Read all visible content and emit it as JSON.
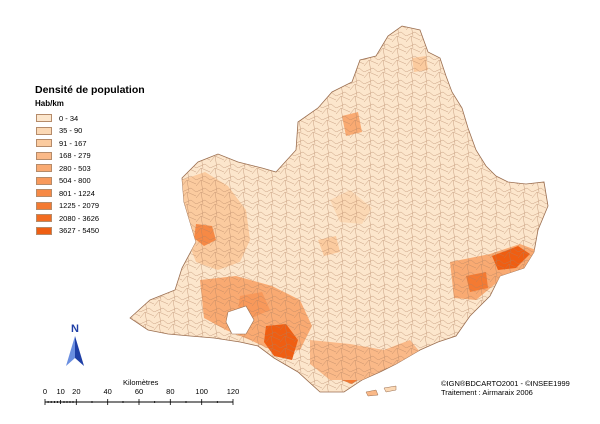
{
  "legend": {
    "title": "Densité de population",
    "unit": "Hab/km",
    "classes": [
      {
        "label": "0 - 34",
        "color": "#fce6cc"
      },
      {
        "label": "35 - 90",
        "color": "#fbd8b4"
      },
      {
        "label": "91 - 167",
        "color": "#fbcb9f"
      },
      {
        "label": "168 - 279",
        "color": "#fab988"
      },
      {
        "label": "280 - 503",
        "color": "#f9aa72"
      },
      {
        "label": "504 - 800",
        "color": "#f8995b"
      },
      {
        "label": "801 - 1224",
        "color": "#f68945"
      },
      {
        "label": "1225 - 2079",
        "color": "#f47a32"
      },
      {
        "label": "2080 - 3626",
        "color": "#f26c21"
      },
      {
        "label": "3627 - 5450",
        "color": "#ef5e12"
      }
    ]
  },
  "scale": {
    "title": "Kilomètres",
    "ticks": [
      "0",
      "10",
      "20",
      "40",
      "60",
      "80",
      "100",
      "120"
    ]
  },
  "north_label": "N",
  "credits": {
    "line1": "©IGN®BDCARTO2001 - ©INSEE1999",
    "line2": "Traitement : Airmaraix 2006"
  },
  "colors": {
    "border": "#9a6e50",
    "background": "#ffffff",
    "north_arrow": "#1f3fa6"
  }
}
